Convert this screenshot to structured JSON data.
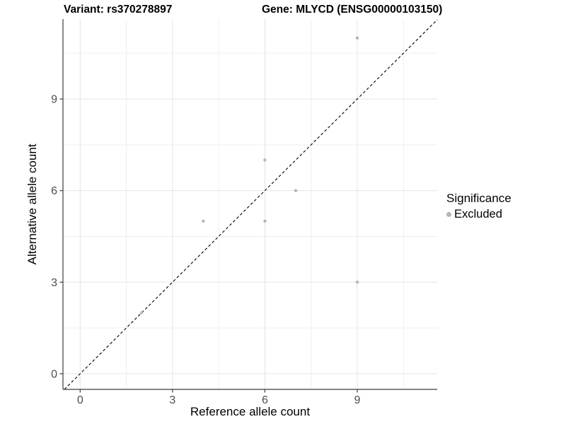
{
  "titles": {
    "variant": "Variant: rs370278897",
    "gene": "Gene: MLYCD (ENSG00000103150)"
  },
  "chart_data": {
    "type": "scatter",
    "xlabel": "Reference allele count",
    "ylabel": "Alternative allele count",
    "x_ticks": [
      0,
      3,
      6,
      9
    ],
    "y_ticks": [
      0,
      3,
      6,
      9
    ],
    "x_minor": [
      1.5,
      4.5,
      7.5,
      10.5
    ],
    "y_minor": [
      1.5,
      4.5,
      7.5,
      10.5
    ],
    "xlim": [
      -0.558,
      11.597
    ],
    "ylim": [
      -0.512,
      11.618
    ],
    "grid": true,
    "legend_position": "right",
    "series": [
      {
        "name": "Excluded",
        "color": "#b5b5b5",
        "points": [
          [
            2,
            2
          ],
          [
            4,
            5
          ],
          [
            6,
            5
          ],
          [
            6,
            7
          ],
          [
            7,
            6
          ],
          [
            9,
            3
          ],
          [
            9,
            11
          ]
        ]
      }
    ],
    "identity_line": {
      "slope": 1,
      "intercept": 0,
      "style": "dashed",
      "color": "#000000"
    }
  },
  "legend": {
    "title": "Significance",
    "entries": [
      {
        "label": "Excluded",
        "color": "#b5b5b5",
        "icon": "point-icon"
      }
    ]
  },
  "colors": {
    "background": "#ffffff",
    "grid_major": "#e4e4e4",
    "grid_minor": "#efefef",
    "axis_line": "#3c3c3c",
    "tick_mark": "#3c3c3c",
    "tick_label": "#4d4d4d",
    "point": "#b5b5b5",
    "identity_line": "#000000"
  }
}
